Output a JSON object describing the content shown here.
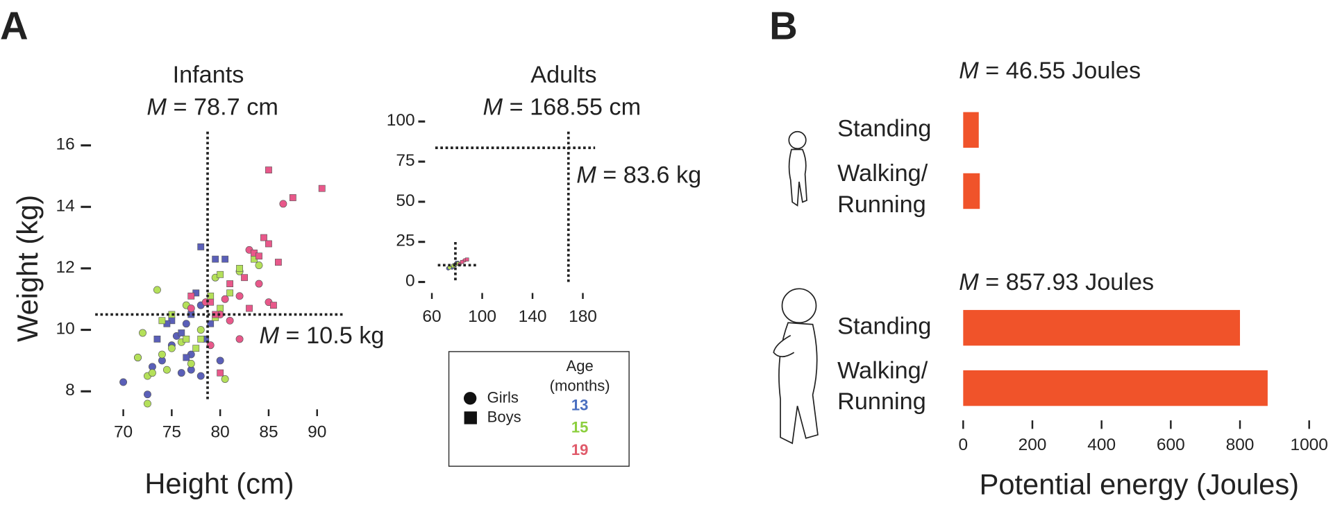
{
  "panel_labels": [
    "A",
    "B"
  ],
  "chart_data": [
    {
      "type": "scatter",
      "title": "Infants",
      "xlabel": "Height (cm)",
      "ylabel": "Weight (kg)",
      "xlim": [
        67.5,
        92.5
      ],
      "xticks": [
        70,
        75,
        80,
        85,
        90
      ],
      "ylim": [
        7,
        17
      ],
      "yticks": [
        8,
        10,
        12,
        14,
        16
      ],
      "grid": false,
      "reference_lines": [
        {
          "axis": "x",
          "value": 78.7
        },
        {
          "axis": "y",
          "value": 10.5
        }
      ],
      "annotations": [
        "M = 78.7 cm",
        "M = 10.5 kg"
      ],
      "series": [
        {
          "marker": "circle",
          "color": "#5a5fb8",
          "x": [
            70,
            72.5,
            73,
            74,
            75,
            76,
            77,
            78,
            76.5,
            78,
            80,
            75.5,
            71.5,
            77
          ],
          "values": [
            8.3,
            7.9,
            8.8,
            9.0,
            9.5,
            8.6,
            8.7,
            8.5,
            10.2,
            10.8,
            9.0,
            9.8,
            9.1,
            9.2
          ]
        },
        {
          "marker": "square",
          "color": "#5a5fb8",
          "x": [
            73.5,
            75,
            76,
            77,
            78,
            79.5,
            80.5,
            74.5,
            76.5,
            78.5,
            77.5,
            79
          ],
          "values": [
            9.7,
            10.3,
            9.9,
            10.5,
            12.7,
            12.3,
            12.3,
            10.2,
            9.1,
            9.7,
            11.2,
            10.2
          ]
        },
        {
          "marker": "circle",
          "color": "#b4e05a",
          "x": [
            71.5,
            72.5,
            73,
            73.5,
            74,
            75,
            76,
            77,
            78,
            79.5,
            80.5,
            82,
            84,
            72,
            74.5,
            76.5,
            72.5
          ],
          "values": [
            9.1,
            8.5,
            8.6,
            11.3,
            9.2,
            9.4,
            9.6,
            8.9,
            10.0,
            11.7,
            8.4,
            11.9,
            12.1,
            9.9,
            8.7,
            10.8,
            7.6
          ]
        },
        {
          "marker": "square",
          "color": "#b4e05a",
          "x": [
            74,
            75,
            76.5,
            77.5,
            79,
            80,
            81,
            82,
            83.5,
            79.5,
            78,
            80
          ],
          "values": [
            10.3,
            10.5,
            9.7,
            9.4,
            11.1,
            10.7,
            11.2,
            12.0,
            12.3,
            10.4,
            9.7,
            11.8
          ]
        },
        {
          "marker": "circle",
          "color": "#e8588a",
          "x": [
            79,
            80,
            81,
            82,
            83,
            84,
            86.5,
            85,
            80.5,
            78.5,
            77,
            82
          ],
          "values": [
            9.5,
            10.5,
            10.3,
            11.1,
            12.6,
            11.5,
            14.1,
            10.9,
            11.0,
            10.9,
            10.7,
            9.7
          ]
        },
        {
          "marker": "square",
          "color": "#e8588a",
          "x": [
            80,
            79.5,
            81,
            82.5,
            83.5,
            84,
            84.5,
            85,
            85,
            86,
            87.5,
            90.5,
            85.5,
            83,
            77,
            79
          ],
          "values": [
            8.6,
            10.5,
            11.5,
            11.7,
            12.5,
            12.4,
            13.0,
            12.8,
            15.2,
            12.2,
            14.3,
            14.6,
            10.8,
            10.7,
            11.1,
            10.9
          ]
        }
      ]
    },
    {
      "type": "scatter",
      "title": "Adults",
      "xlim": [
        50,
        195
      ],
      "xticks": [
        60,
        100,
        140,
        180
      ],
      "ylim": [
        -5,
        105
      ],
      "yticks": [
        0,
        25,
        50,
        75,
        100
      ],
      "grid": false,
      "reference_lines": [
        {
          "axis": "x",
          "value": 168.55
        },
        {
          "axis": "y",
          "value": 83.6
        },
        {
          "axis": "x",
          "value": 78.7
        },
        {
          "axis": "y",
          "value": 10.5
        }
      ],
      "annotations": [
        "M = 168.55 cm",
        "M = 83.6 kg"
      ],
      "series": [
        {
          "marker": "circle",
          "color": "#5a5fb8",
          "x": [
            76,
            73
          ],
          "values": [
            9,
            8.5
          ]
        },
        {
          "marker": "square",
          "color": "#5a5fb8",
          "x": [
            78,
            80
          ],
          "values": [
            10.5,
            12
          ]
        },
        {
          "marker": "circle",
          "color": "#b4e05a",
          "x": [
            74,
            79
          ],
          "values": [
            9,
            11
          ]
        },
        {
          "marker": "square",
          "color": "#b4e05a",
          "x": [
            77,
            81
          ],
          "values": [
            10,
            11.5
          ]
        },
        {
          "marker": "circle",
          "color": "#e8588a",
          "x": [
            82,
            86
          ],
          "values": [
            11,
            13.5
          ]
        },
        {
          "marker": "square",
          "color": "#e8588a",
          "x": [
            84,
            88
          ],
          "values": [
            12.5,
            14
          ]
        }
      ],
      "legend": {
        "markers": [
          {
            "label": "Girls",
            "shape": "circle"
          },
          {
            "label": "Boys",
            "shape": "square"
          }
        ],
        "title": "Age\n(months)",
        "ages": [
          {
            "label": "13",
            "color": "#4a6fc0"
          },
          {
            "label": "15",
            "color": "#8ccf3e"
          },
          {
            "label": "19",
            "color": "#e05a6a"
          }
        ]
      }
    },
    {
      "type": "barh",
      "annotation": "M = 46.55 Joules",
      "xlim": [
        0,
        1000
      ],
      "color": "#f0532a",
      "categories": [
        "Standing",
        "Walking/\nRunning"
      ],
      "values": [
        45,
        48
      ]
    },
    {
      "type": "barh",
      "annotation": "M = 857.93 Joules",
      "xlabel": "Potential energy (Joules)",
      "xlim": [
        0,
        1000
      ],
      "xticks": [
        0,
        200,
        400,
        600,
        800,
        1000
      ],
      "color": "#f0532a",
      "categories": [
        "Standing",
        "Walking/\nRunning"
      ],
      "values": [
        800,
        880
      ]
    }
  ]
}
